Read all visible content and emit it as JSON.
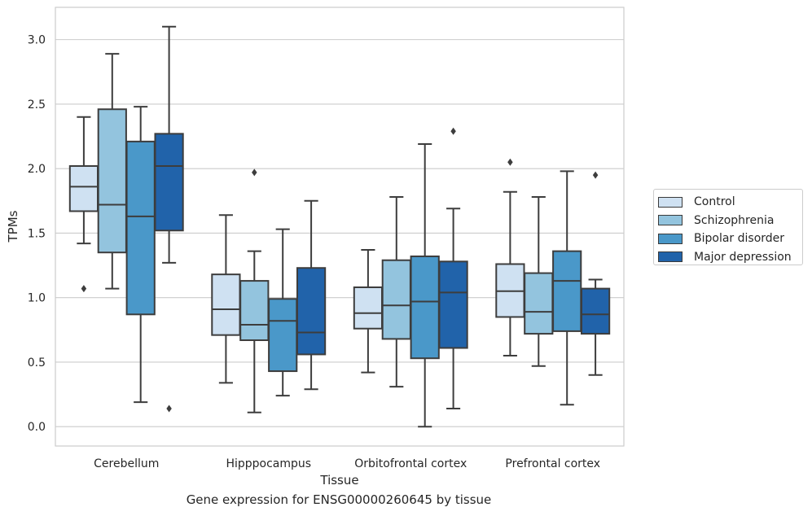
{
  "chart_data": {
    "type": "boxplot",
    "title": "Gene expression for ENSG00000260645 by tissue",
    "xlabel": "Tissue",
    "ylabel": "TPMs",
    "ylim": [
      -0.15,
      3.25
    ],
    "yticks": [
      "0.0",
      "0.5",
      "1.0",
      "1.5",
      "2.0",
      "2.5",
      "3.0"
    ],
    "grid": true,
    "legend_position": "right",
    "categories": [
      "Cerebellum",
      "Hipppocampus",
      "Orbitofrontal cortex",
      "Prefrontal cortex"
    ],
    "series": [
      {
        "name": "Control",
        "color": "#cfe1f2",
        "boxes": [
          {
            "min": 1.42,
            "q1": 1.67,
            "median": 1.86,
            "q3": 2.02,
            "max": 2.4,
            "outliers": [
              1.07
            ]
          },
          {
            "min": 0.34,
            "q1": 0.71,
            "median": 0.91,
            "q3": 1.18,
            "max": 1.64,
            "outliers": []
          },
          {
            "min": 0.42,
            "q1": 0.76,
            "median": 0.88,
            "q3": 1.08,
            "max": 1.37,
            "outliers": []
          },
          {
            "min": 0.55,
            "q1": 0.85,
            "median": 1.05,
            "q3": 1.26,
            "max": 1.82,
            "outliers": [
              2.05
            ]
          }
        ]
      },
      {
        "name": "Schizophrenia",
        "color": "#93c4de",
        "boxes": [
          {
            "min": 1.07,
            "q1": 1.35,
            "median": 1.72,
            "q3": 2.46,
            "max": 2.89,
            "outliers": []
          },
          {
            "min": 0.11,
            "q1": 0.67,
            "median": 0.79,
            "q3": 1.13,
            "max": 1.36,
            "outliers": [
              1.97
            ]
          },
          {
            "min": 0.31,
            "q1": 0.68,
            "median": 0.94,
            "q3": 1.29,
            "max": 1.78,
            "outliers": []
          },
          {
            "min": 0.47,
            "q1": 0.72,
            "median": 0.89,
            "q3": 1.19,
            "max": 1.78,
            "outliers": []
          }
        ]
      },
      {
        "name": "Bipolar disorder",
        "color": "#4a98c9",
        "boxes": [
          {
            "min": 0.19,
            "q1": 0.87,
            "median": 1.63,
            "q3": 2.21,
            "max": 2.48,
            "outliers": []
          },
          {
            "min": 0.24,
            "q1": 0.43,
            "median": 0.82,
            "q3": 0.99,
            "max": 1.53,
            "outliers": []
          },
          {
            "min": 0.0,
            "q1": 0.53,
            "median": 0.97,
            "q3": 1.32,
            "max": 2.19,
            "outliers": []
          },
          {
            "min": 0.17,
            "q1": 0.74,
            "median": 1.13,
            "q3": 1.36,
            "max": 1.98,
            "outliers": []
          }
        ]
      },
      {
        "name": "Major depression",
        "color": "#2163aa",
        "boxes": [
          {
            "min": 1.27,
            "q1": 1.52,
            "median": 2.02,
            "q3": 2.27,
            "max": 3.1,
            "outliers": [
              0.14
            ]
          },
          {
            "min": 0.29,
            "q1": 0.56,
            "median": 0.73,
            "q3": 1.23,
            "max": 1.75,
            "outliers": []
          },
          {
            "min": 0.14,
            "q1": 0.61,
            "median": 1.04,
            "q3": 1.28,
            "max": 1.69,
            "outliers": [
              2.29
            ]
          },
          {
            "min": 0.4,
            "q1": 0.72,
            "median": 0.87,
            "q3": 1.07,
            "max": 1.14,
            "outliers": [
              1.95
            ]
          }
        ]
      }
    ]
  }
}
